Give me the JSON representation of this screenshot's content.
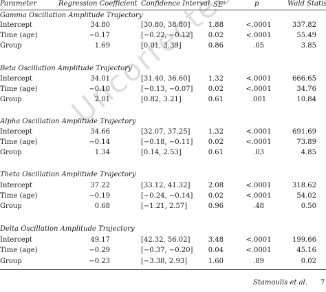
{
  "header": {
    "parameter": "Parameter",
    "coefficient": "Regression Coefficient",
    "ci": "Confidence Interval",
    "se": "SE",
    "p": "p",
    "wald": "Wald Statistic"
  },
  "sections": [
    {
      "title": "Gamma Oscillation Amplitude Trajectory",
      "rows": [
        {
          "param": "Intercept",
          "coef": "34.80",
          "ci": "[30.80, 38.80]",
          "se": "1.88",
          "p": "<.0001",
          "wald": "337.82"
        },
        {
          "param": "Time (age)",
          "coef": "−0.17",
          "ci": "[−0.22, −0.12]",
          "se": "0.02",
          "p": "<.0001",
          "wald": "55.49"
        },
        {
          "param": "Group",
          "coef": "1.69",
          "ci": "[0.01, 3.39]",
          "se": "0.86",
          "p": ".05",
          "wald": "3.85"
        }
      ]
    },
    {
      "title": "Beta Oscillation Amplitude Trajectory",
      "rows": [
        {
          "param": "Intercept",
          "coef": "34.01",
          "ci": "[31.40, 36.60]",
          "se": "1.32",
          "p": "<.0001",
          "wald": "666.65"
        },
        {
          "param": "Time (age)",
          "coef": "−0.10",
          "ci": "[−0.13, −0.07]",
          "se": "0.02",
          "p": "<.0001",
          "wald": "34.76"
        },
        {
          "param": "Group",
          "coef": "2.01",
          "ci": "[0.82, 3.21]",
          "se": "0.61",
          "p": ".001",
          "wald": "10.84"
        }
      ]
    },
    {
      "title": "Alpha Oscillation Amplitude Trajectory",
      "rows": [
        {
          "param": "Intercept",
          "coef": "34.66",
          "ci": "[32.07, 37.25]",
          "se": "1.32",
          "p": "<.0001",
          "wald": "691.69"
        },
        {
          "param": "Time (age)",
          "coef": "−0.14",
          "ci": "[−0.18, −0.11]",
          "se": "0.02",
          "p": "<.0001",
          "wald": "73.89"
        },
        {
          "param": "Group",
          "coef": "1.34",
          "ci": "[0.14, 2.53]",
          "se": "0.61",
          "p": ".03",
          "wald": "4.85"
        }
      ]
    },
    {
      "title": "Theta Oscillation Amplitude Trajectory",
      "rows": [
        {
          "param": "Intercept",
          "coef": "37.22",
          "ci": "[33.12, 41.32]",
          "se": "2.08",
          "p": "<.0001",
          "wald": "318.62"
        },
        {
          "param": "Time (age)",
          "coef": "−0.19",
          "ci": "[−0.24, −0.14]",
          "se": "0.02",
          "p": "<.0001",
          "wald": "54.02"
        },
        {
          "param": "Group",
          "coef": "0.68",
          "ci": "[−1.21, 2.57]",
          "se": "0.96",
          "p": ".48",
          "wald": "0.50"
        }
      ]
    },
    {
      "title": "Delta Oscillation Amplitude Trajectory",
      "rows": [
        {
          "param": "Intercept",
          "coef": "49.17",
          "ci": "[42.32, 56.02]",
          "se": "3.48",
          "p": "<.0001",
          "wald": "199.66"
        },
        {
          "param": "Time (age)",
          "coef": "−0.29",
          "ci": "[−0.37, −0.20]",
          "se": "0.04",
          "p": "<.0001",
          "wald": "45.16"
        },
        {
          "param": "Group",
          "coef": "−0.23",
          "ci": "[−3.38, 2.93]",
          "se": "1.60",
          "p": ".89",
          "wald": "0.02"
        }
      ]
    }
  ],
  "watermark": "Uncorrected Proof",
  "footer": {
    "authors": "Stamoulis et al.",
    "page": "7"
  }
}
